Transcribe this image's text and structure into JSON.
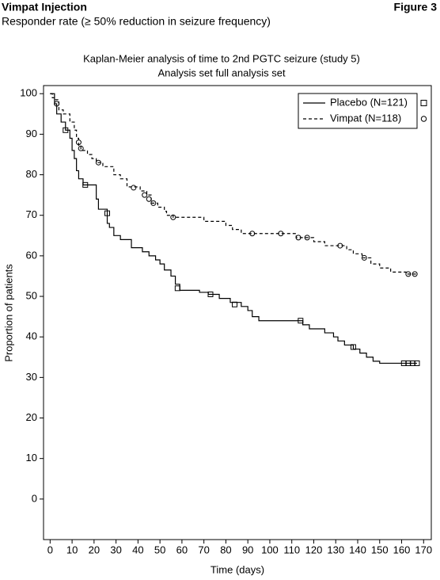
{
  "header": {
    "title": "Vimpat Injection",
    "figure": "Figure 3",
    "subtitle": "Responder rate (≥ 50% reduction in seizure frequency)"
  },
  "chart_data": {
    "type": "line",
    "step": true,
    "title": "Kaplan-Meier analysis of time to 2nd PGTC seizure (study 5)",
    "subtitle": "Analysis set full analysis set",
    "x_label": "Time (days)",
    "y_label": "Proportion of patients",
    "xlim": [
      -3,
      173.5
    ],
    "xticks": [
      0,
      10,
      20,
      30,
      40,
      50,
      60,
      70,
      80,
      90,
      100,
      110,
      120,
      130,
      140,
      150,
      160,
      170
    ],
    "ylim": [
      -10,
      102
    ],
    "yticks": [
      0,
      10,
      20,
      30,
      40,
      50,
      60,
      70,
      80,
      90,
      100
    ],
    "legend": "upper right",
    "series": [
      {
        "name": "Placebo (N=121)",
        "color": "#000000",
        "dash": "solid",
        "marker": "square",
        "x": [
          0,
          2,
          3,
          5,
          7,
          9,
          10,
          11,
          12,
          13,
          15,
          21,
          22,
          26,
          27,
          29,
          32,
          37,
          42,
          45,
          48,
          50,
          52,
          55,
          57,
          59,
          68,
          72,
          77,
          82,
          87,
          90,
          92,
          95,
          110,
          115,
          118,
          125,
          129,
          131,
          134,
          138,
          141,
          144,
          147,
          150,
          167
        ],
        "values": [
          100,
          97.5,
          95,
          93,
          91,
          89,
          86,
          84,
          81,
          79,
          77.5,
          74,
          71.5,
          68,
          67,
          65,
          64,
          62,
          61,
          60,
          59,
          58,
          56.5,
          55,
          53,
          51.5,
          51,
          50.5,
          49.5,
          48.5,
          47.5,
          46.5,
          45,
          44,
          44,
          43,
          42,
          41,
          40,
          39,
          38,
          37,
          36,
          35,
          34,
          33.5,
          33.5
        ],
        "censor_x": [
          7,
          16,
          26,
          58,
          73,
          84,
          114,
          138,
          161,
          163,
          165,
          167
        ],
        "censor_values": [
          91,
          77.5,
          70.5,
          52,
          50.5,
          48,
          44,
          37.5,
          33.5,
          33.5,
          33.5,
          33.5
        ]
      },
      {
        "name": "Vimpat (N=118)",
        "color": "#000000",
        "dash": "dashed",
        "marker": "circle",
        "x": [
          0,
          1,
          2,
          4,
          6,
          9,
          11,
          12,
          13,
          14,
          17,
          19,
          21,
          24,
          29,
          32,
          35,
          41,
          44,
          46,
          49,
          52,
          53,
          56,
          70,
          80,
          83,
          87,
          112,
          120,
          125,
          135,
          138,
          142,
          146,
          150,
          155,
          162,
          167
        ],
        "values": [
          100,
          99,
          98.5,
          96,
          95,
          93,
          91,
          89,
          87,
          86,
          85,
          84,
          83,
          82,
          80,
          79,
          77,
          76,
          75,
          73,
          72,
          71,
          70,
          69.5,
          68.5,
          67.5,
          66.5,
          65.5,
          64.5,
          63.5,
          62.5,
          61.5,
          60.5,
          59.5,
          58,
          57,
          56,
          55.5,
          55.5
        ],
        "censor_x": [
          3,
          13,
          14,
          22,
          38,
          43,
          45,
          47,
          56,
          92,
          105,
          113,
          117,
          132,
          143,
          163,
          166
        ],
        "censor_values": [
          97.5,
          88,
          86.5,
          83,
          76.8,
          75,
          74,
          73,
          69.5,
          65.5,
          65.5,
          64.5,
          64.5,
          62.5,
          59.5,
          55.5,
          55.5
        ]
      }
    ]
  }
}
